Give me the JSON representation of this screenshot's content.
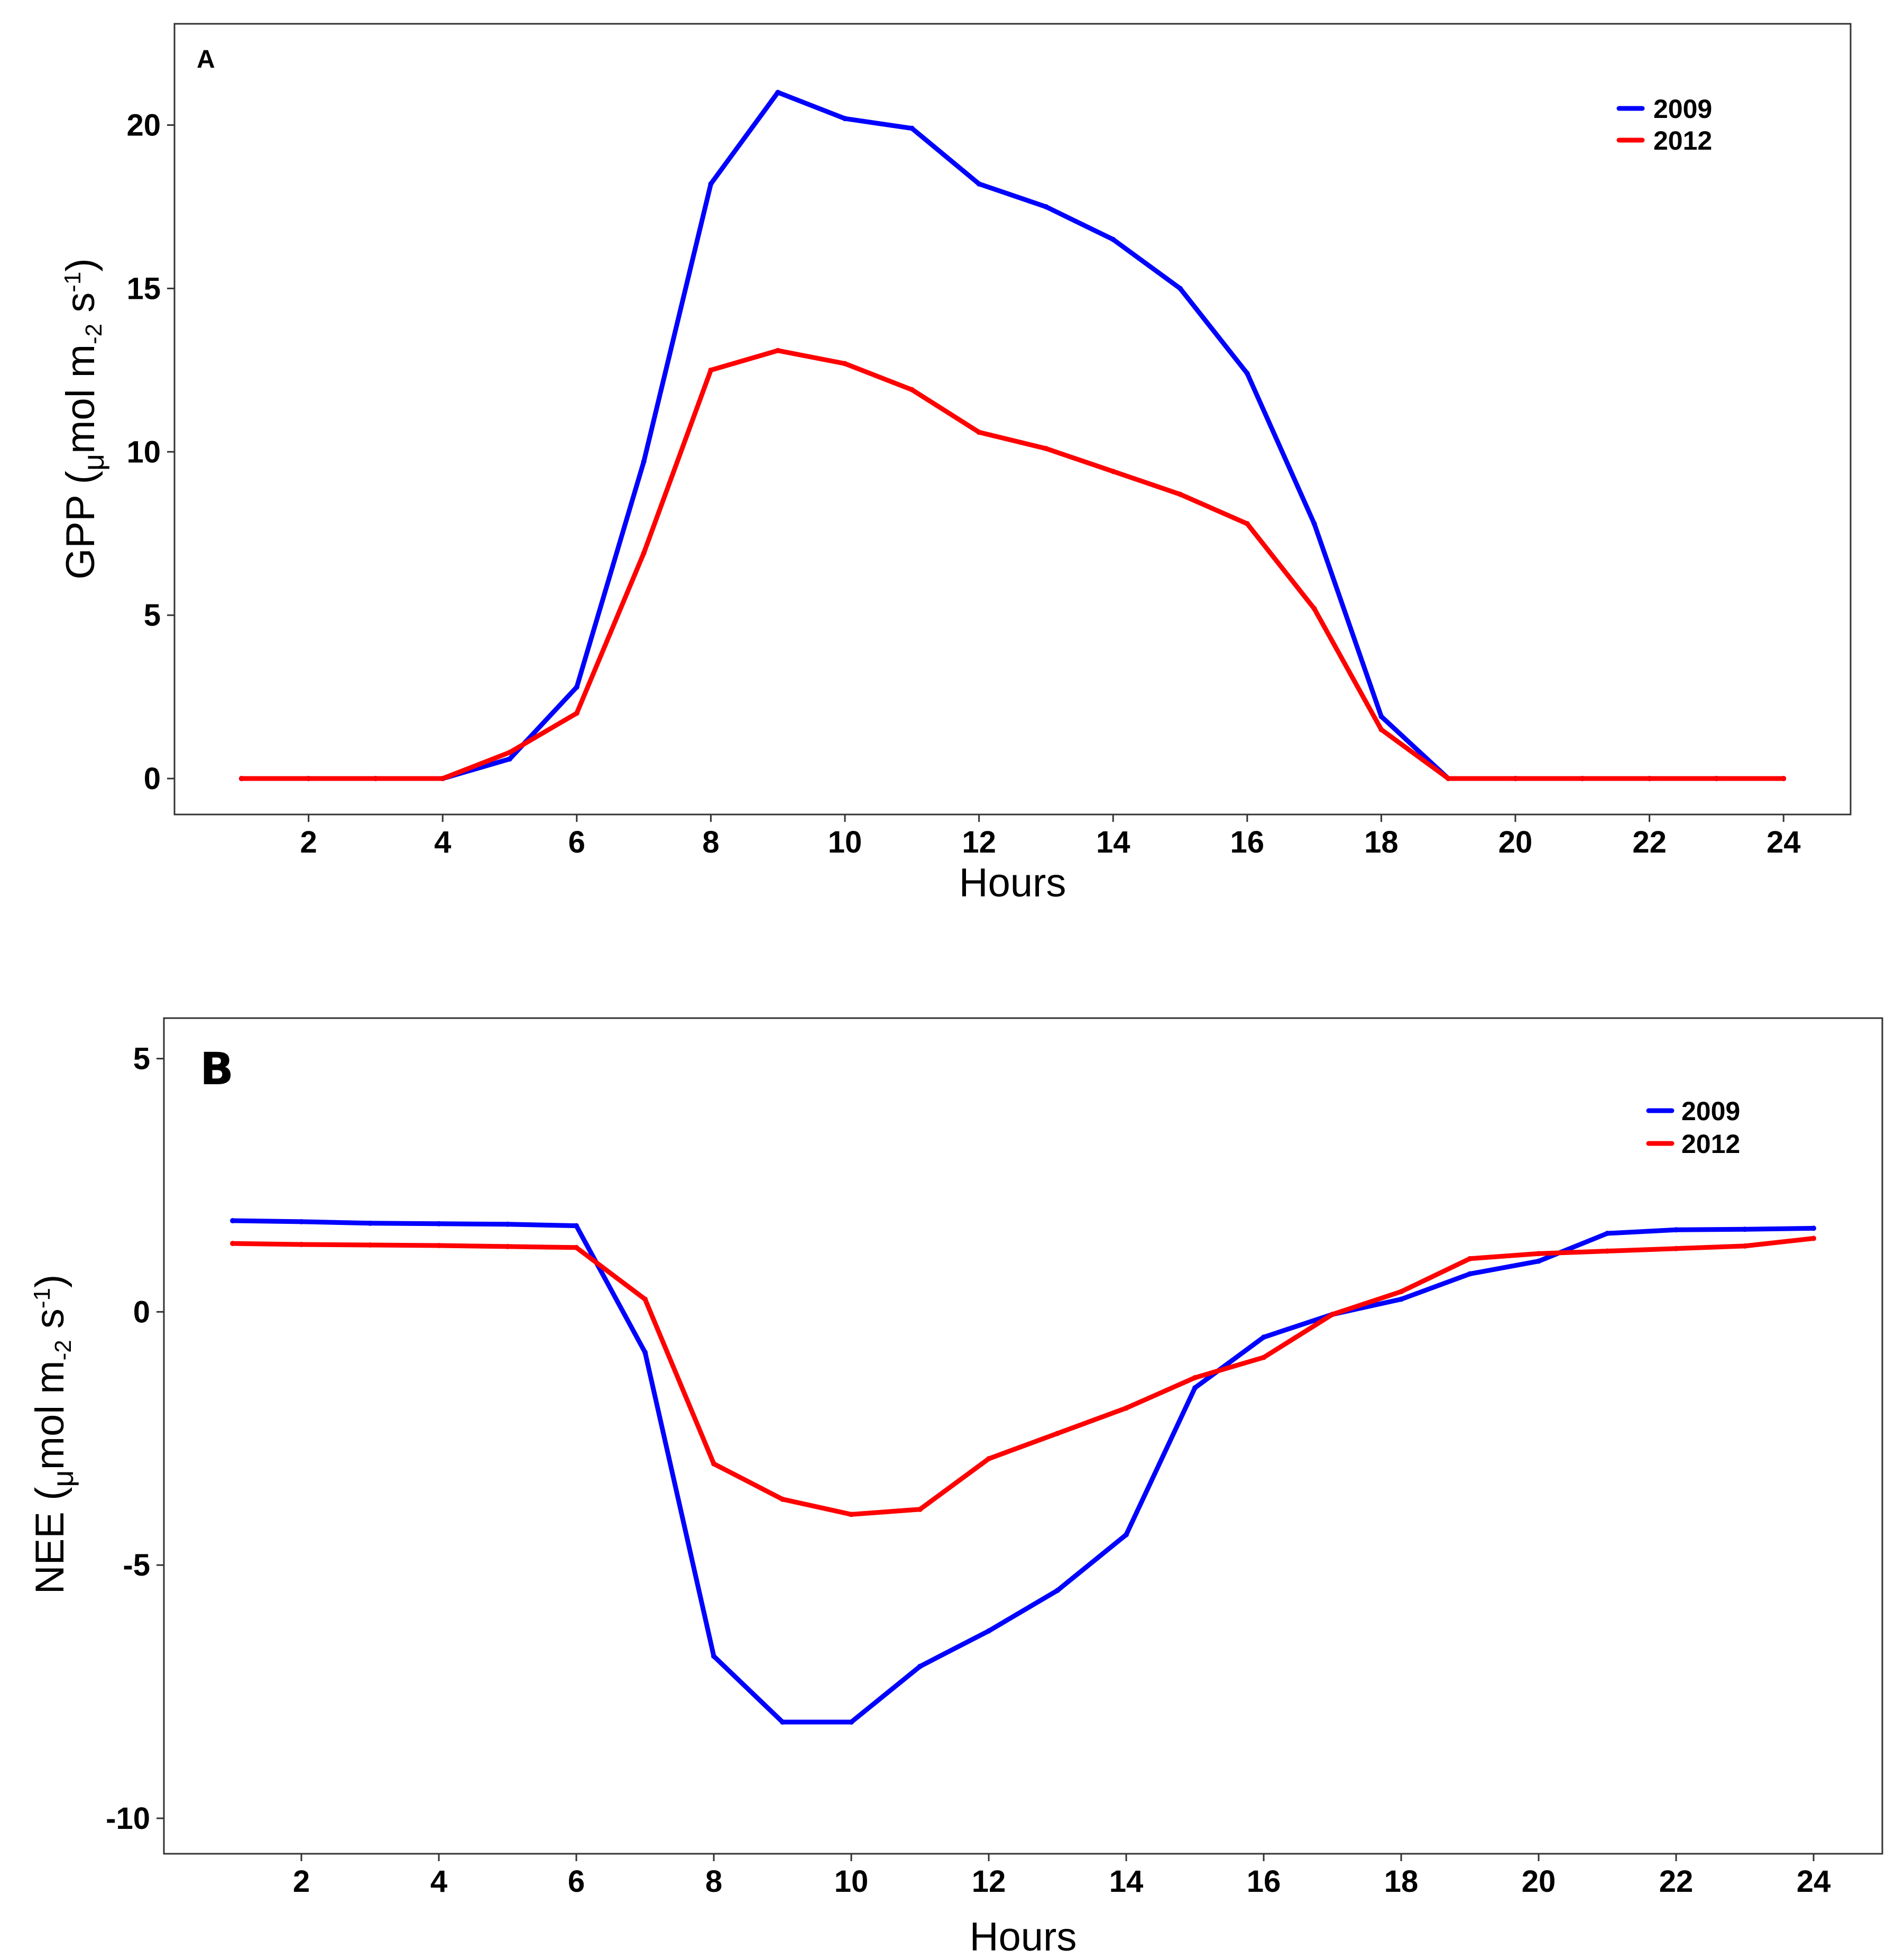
{
  "chart_data": [
    {
      "type": "line",
      "panel_label": "A",
      "title": "",
      "xlabel": "Hours",
      "ylabel": "GPP (μmol m-2 s-1)",
      "ylabel_parts": {
        "main": "GPP (",
        "mu": "μ",
        "mol": "mol m",
        "sub1": "-2",
        "s": " s",
        "sub2": "-1",
        "close": ")"
      },
      "xlim": [
        0,
        25
      ],
      "ylim": [
        -1.1,
        23.1
      ],
      "xticks": [
        2,
        4,
        6,
        8,
        10,
        12,
        14,
        16,
        18,
        20,
        22,
        24
      ],
      "xtick_labels": [
        "2",
        "4",
        "6",
        "8",
        "10",
        "12",
        "14",
        "16",
        "18",
        "20",
        "22",
        "24"
      ],
      "yticks": [
        0,
        5,
        10,
        15,
        20
      ],
      "ytick_labels": [
        "0",
        "5",
        "10",
        "15",
        "20"
      ],
      "grid": false,
      "legend_position": "top-right",
      "x": [
        1,
        2,
        3,
        4,
        5,
        6,
        7,
        8,
        9,
        10,
        11,
        12,
        13,
        14,
        15,
        16,
        17,
        18,
        19,
        20,
        21,
        22,
        23,
        24
      ],
      "series": [
        {
          "name": "2009",
          "color": "#0000ff",
          "values": [
            0,
            0,
            0,
            0,
            0.6,
            2.8,
            9.7,
            18.2,
            21.0,
            20.2,
            19.9,
            18.2,
            17.5,
            16.5,
            15.0,
            12.4,
            7.8,
            1.9,
            0,
            0,
            0,
            0,
            0,
            0
          ]
        },
        {
          "name": "2012",
          "color": "#ff0000",
          "values": [
            0,
            0,
            0,
            0,
            0.8,
            2.0,
            6.9,
            12.5,
            13.1,
            12.7,
            11.9,
            10.6,
            10.1,
            9.4,
            8.7,
            7.8,
            5.2,
            1.5,
            0,
            0,
            0,
            0,
            0,
            0
          ]
        }
      ]
    },
    {
      "type": "line",
      "panel_label": "B",
      "title": "",
      "xlabel": "Hours",
      "ylabel": "NEE (μmol m-2 s-1)",
      "ylabel_parts": {
        "main": "NEE (",
        "mu": "μ",
        "mol": "mol m",
        "sub1": "-2",
        "s": " s",
        "sub2": "-1",
        "close": ")"
      },
      "xlim": [
        0,
        25
      ],
      "ylim": [
        -10.7,
        5.8
      ],
      "xticks": [
        2,
        4,
        6,
        8,
        10,
        12,
        14,
        16,
        18,
        20,
        22,
        24
      ],
      "xtick_labels": [
        "2",
        "4",
        "6",
        "8",
        "10",
        "12",
        "14",
        "16",
        "18",
        "20",
        "22",
        "24"
      ],
      "yticks": [
        -10,
        -5,
        0,
        5
      ],
      "ytick_labels": [
        "-10",
        "-5",
        "0",
        "5"
      ],
      "grid": false,
      "legend_position": "top-right",
      "x": [
        1,
        2,
        3,
        4,
        5,
        6,
        7,
        8,
        9,
        10,
        11,
        12,
        13,
        14,
        15,
        16,
        17,
        18,
        19,
        20,
        21,
        22,
        23,
        24
      ],
      "series": [
        {
          "name": "2009",
          "color": "#0000ff",
          "values": [
            1.8,
            1.78,
            1.75,
            1.74,
            1.73,
            1.7,
            -0.8,
            -6.8,
            -8.1,
            -8.1,
            -7.0,
            -6.3,
            -5.5,
            -4.4,
            -1.5,
            -0.5,
            -0.05,
            0.25,
            0.75,
            1.0,
            1.55,
            1.62,
            1.63,
            1.65
          ]
        },
        {
          "name": "2012",
          "color": "#ff0000",
          "values": [
            1.35,
            1.33,
            1.32,
            1.31,
            1.29,
            1.27,
            0.25,
            -3.0,
            -3.7,
            -4.0,
            -3.9,
            -2.9,
            -2.4,
            -1.9,
            -1.3,
            -0.9,
            -0.05,
            0.4,
            1.05,
            1.15,
            1.2,
            1.25,
            1.3,
            1.45
          ]
        }
      ]
    }
  ]
}
